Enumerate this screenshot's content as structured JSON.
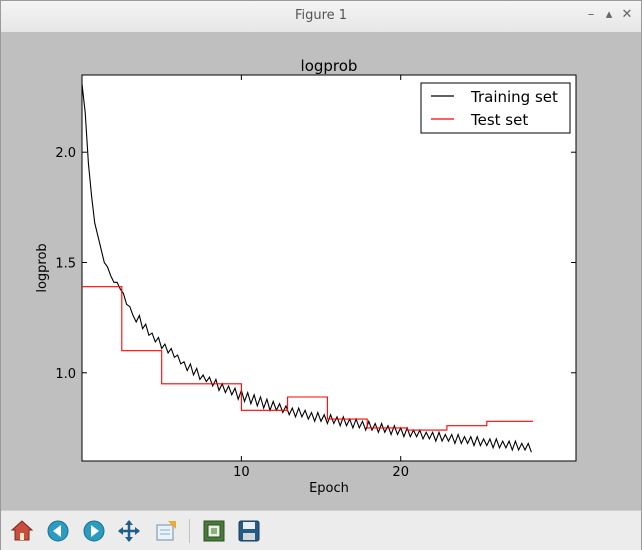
{
  "window": {
    "title": "Figure 1",
    "controls": {
      "minimize": "–",
      "maximize": "▴",
      "close": "✕"
    }
  },
  "chart_data": {
    "type": "line",
    "title": "logprob",
    "xlabel": "Epoch",
    "ylabel": "logprob",
    "xlim": [
      0,
      31
    ],
    "ylim": [
      0.6,
      2.35
    ],
    "xticks": [
      10,
      20
    ],
    "xtick_labels": [
      "10",
      "20"
    ],
    "yticks": [
      1.0,
      1.5,
      2.0
    ],
    "ytick_labels": [
      "1.0",
      "1.5",
      "2.0"
    ],
    "grid": false,
    "legend_location": "upper right",
    "series": [
      {
        "name": "Training set",
        "color": "#000000",
        "x": [
          0.0,
          0.2,
          0.4,
          0.6,
          0.8,
          1.0,
          1.2,
          1.4,
          1.6,
          1.8,
          2.0,
          2.2,
          2.4,
          2.6,
          2.8,
          3.0,
          3.2,
          3.4,
          3.6,
          3.8,
          4.0,
          4.2,
          4.4,
          4.6,
          4.8,
          5.0,
          5.2,
          5.4,
          5.6,
          5.8,
          6.0,
          6.2,
          6.4,
          6.6,
          6.8,
          7.0,
          7.2,
          7.4,
          7.6,
          7.8,
          8.0,
          8.2,
          8.4,
          8.6,
          8.8,
          9.0,
          9.2,
          9.4,
          9.6,
          9.8,
          10.0,
          10.2,
          10.4,
          10.6,
          10.8,
          11.0,
          11.2,
          11.4,
          11.6,
          11.8,
          12.0,
          12.2,
          12.4,
          12.6,
          12.8,
          13.0,
          13.2,
          13.4,
          13.6,
          13.8,
          14.0,
          14.2,
          14.4,
          14.6,
          14.8,
          15.0,
          15.2,
          15.4,
          15.6,
          15.8,
          16.0,
          16.2,
          16.4,
          16.6,
          16.8,
          17.0,
          17.2,
          17.4,
          17.6,
          17.8,
          18.0,
          18.2,
          18.4,
          18.6,
          18.8,
          19.0,
          19.2,
          19.4,
          19.6,
          19.8,
          20.0,
          20.2,
          20.4,
          20.6,
          20.8,
          21.0,
          21.2,
          21.4,
          21.6,
          21.8,
          22.0,
          22.2,
          22.4,
          22.6,
          22.8,
          23.0,
          23.2,
          23.4,
          23.6,
          23.8,
          24.0,
          24.2,
          24.4,
          24.6,
          24.8,
          25.0,
          25.2,
          25.4,
          25.6,
          25.8,
          26.0,
          26.2,
          26.4,
          26.6,
          26.8,
          27.0,
          27.2,
          27.4,
          27.6,
          27.8,
          28.0,
          28.2
        ],
        "y": [
          2.31,
          2.18,
          1.95,
          1.8,
          1.68,
          1.62,
          1.56,
          1.5,
          1.48,
          1.44,
          1.41,
          1.41,
          1.38,
          1.36,
          1.31,
          1.3,
          1.26,
          1.23,
          1.26,
          1.2,
          1.22,
          1.17,
          1.18,
          1.14,
          1.16,
          1.11,
          1.13,
          1.09,
          1.11,
          1.07,
          1.08,
          1.04,
          1.05,
          1.01,
          1.04,
          0.99,
          1.02,
          0.97,
          0.99,
          0.96,
          0.98,
          0.94,
          0.97,
          0.92,
          0.95,
          0.91,
          0.94,
          0.9,
          0.93,
          0.88,
          0.92,
          0.87,
          0.91,
          0.86,
          0.9,
          0.85,
          0.89,
          0.84,
          0.88,
          0.83,
          0.87,
          0.83,
          0.86,
          0.82,
          0.85,
          0.81,
          0.84,
          0.8,
          0.84,
          0.8,
          0.83,
          0.79,
          0.82,
          0.78,
          0.82,
          0.78,
          0.81,
          0.77,
          0.81,
          0.77,
          0.8,
          0.76,
          0.8,
          0.76,
          0.79,
          0.75,
          0.79,
          0.75,
          0.78,
          0.74,
          0.78,
          0.74,
          0.77,
          0.73,
          0.77,
          0.73,
          0.76,
          0.72,
          0.76,
          0.72,
          0.75,
          0.71,
          0.75,
          0.71,
          0.74,
          0.71,
          0.74,
          0.7,
          0.73,
          0.7,
          0.73,
          0.69,
          0.73,
          0.69,
          0.72,
          0.69,
          0.72,
          0.68,
          0.72,
          0.68,
          0.71,
          0.68,
          0.71,
          0.67,
          0.71,
          0.67,
          0.7,
          0.67,
          0.7,
          0.66,
          0.7,
          0.66,
          0.69,
          0.66,
          0.69,
          0.65,
          0.69,
          0.65,
          0.68,
          0.65,
          0.68,
          0.64
        ]
      },
      {
        "name": "Test set",
        "color": "#ff0000",
        "x": [
          0.0,
          2.5,
          2.5,
          5.0,
          5.0,
          10.0,
          10.0,
          12.9,
          12.9,
          15.4,
          15.4,
          17.9,
          17.9,
          20.4,
          20.4,
          22.9,
          22.9,
          25.4,
          25.4,
          28.3
        ],
        "y": [
          1.39,
          1.39,
          1.1,
          1.1,
          0.95,
          0.95,
          0.83,
          0.83,
          0.89,
          0.89,
          0.79,
          0.79,
          0.75,
          0.75,
          0.74,
          0.74,
          0.76,
          0.76,
          0.78,
          0.78
        ]
      }
    ]
  },
  "toolbar": {
    "items": [
      {
        "name": "home-icon",
        "icon": "home"
      },
      {
        "name": "back-icon",
        "icon": "back"
      },
      {
        "name": "forward-icon",
        "icon": "forward"
      },
      {
        "name": "pan-icon",
        "icon": "pan"
      },
      {
        "name": "zoom-icon",
        "icon": "zoom"
      },
      {
        "name": "configure-subplots-icon",
        "icon": "subplots"
      },
      {
        "name": "save-icon",
        "icon": "save"
      }
    ]
  }
}
